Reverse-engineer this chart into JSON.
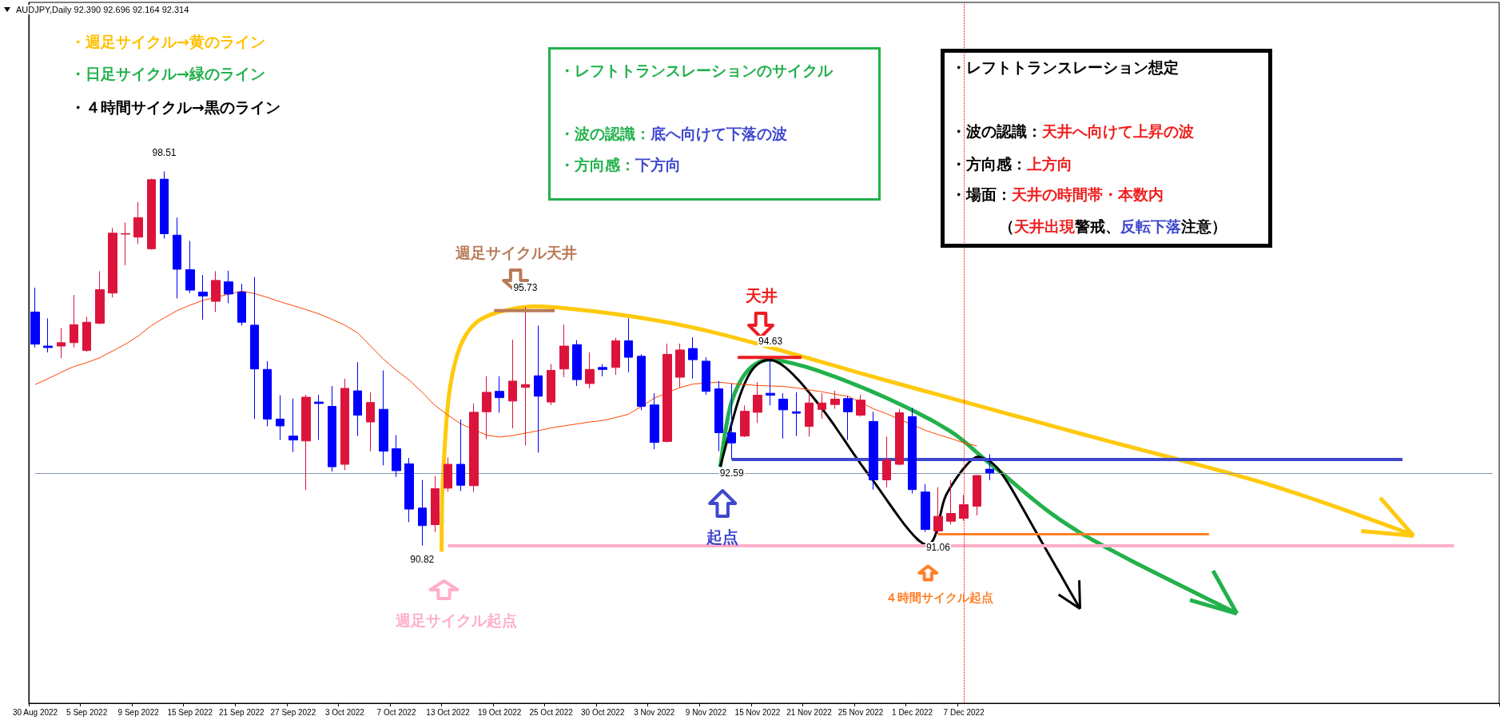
{
  "chart_data": {
    "type": "candlestick",
    "categories": [
      "30 Aug 2022",
      null,
      null,
      null,
      "5 Sep 2022",
      null,
      null,
      null,
      "9 Sep 2022",
      null,
      null,
      null,
      "15 Sep 2022",
      null,
      null,
      null,
      "21 Sep 2022",
      null,
      null,
      null,
      "27 Sep 2022",
      null,
      null,
      null,
      "3 Oct 2022",
      null,
      null,
      null,
      "7 Oct 2022",
      null,
      null,
      null,
      "13 Oct 2022",
      null,
      null,
      null,
      "19 Oct 2022",
      null,
      null,
      null,
      "25 Oct 2022",
      null,
      null,
      null,
      "30 Oct 2022",
      null,
      null,
      null,
      "3 Nov 2022",
      null,
      null,
      null,
      "9 Nov 2022",
      null,
      null,
      null,
      "15 Nov 2022",
      null,
      null,
      null,
      "21 Nov 2022",
      null,
      null,
      null,
      "25 Nov 2022",
      null,
      null,
      null,
      "1 Dec 2022",
      null,
      null,
      null,
      "7 Dec 2022",
      null,
      null,
      null,
      null,
      null,
      null,
      null,
      null,
      null,
      null,
      null,
      null,
      null,
      null,
      null,
      null,
      null,
      null,
      null,
      null,
      null,
      null,
      null,
      null,
      null,
      null,
      null,
      null,
      null,
      null,
      null,
      null,
      null,
      null,
      null,
      null,
      null,
      null,
      null,
      null,
      null
    ],
    "ohlc": [
      [
        95.62,
        96.12,
        94.89,
        94.96
      ],
      [
        94.92,
        95.49,
        94.79,
        94.89
      ],
      [
        94.92,
        95.29,
        94.67,
        94.99
      ],
      [
        94.99,
        95.97,
        94.89,
        95.36
      ],
      [
        94.83,
        95.52,
        94.8,
        95.41
      ],
      [
        95.39,
        96.46,
        95.37,
        96.08
      ],
      [
        96.01,
        97.35,
        95.92,
        97.24
      ],
      [
        97.22,
        97.46,
        96.58,
        97.23
      ],
      [
        97.16,
        97.88,
        97.02,
        97.56
      ],
      [
        96.92,
        98.36,
        96.9,
        98.34
      ],
      [
        98.35,
        98.51,
        97.13,
        97.23
      ],
      [
        97.2,
        97.56,
        95.9,
        96.5
      ],
      [
        96.49,
        97.08,
        96.01,
        96.07
      ],
      [
        96.03,
        96.38,
        95.46,
        95.95
      ],
      [
        95.84,
        96.46,
        95.62,
        96.27
      ],
      [
        96.24,
        96.47,
        95.8,
        95.99
      ],
      [
        96.03,
        96.2,
        95.34,
        95.41
      ],
      [
        95.35,
        96.34,
        93.42,
        94.45
      ],
      [
        94.44,
        94.61,
        93.27,
        93.42
      ],
      [
        93.42,
        93.91,
        92.99,
        93.28
      ],
      [
        93.07,
        93.84,
        92.74,
        92.99
      ],
      [
        92.97,
        93.92,
        91.96,
        93.87
      ],
      [
        93.77,
        93.92,
        92.99,
        93.74
      ],
      [
        93.68,
        94.1,
        92.34,
        92.44
      ],
      [
        92.49,
        94.25,
        92.37,
        94.05
      ],
      [
        94.0,
        94.59,
        93.07,
        93.5
      ],
      [
        93.36,
        93.97,
        92.76,
        93.76
      ],
      [
        93.62,
        94.42,
        92.47,
        92.76
      ],
      [
        92.81,
        93.09,
        92.23,
        92.36
      ],
      [
        92.5,
        92.62,
        91.3,
        91.57
      ],
      [
        91.59,
        92.17,
        90.82,
        91.23
      ],
      [
        91.25,
        92.25,
        91.1,
        91.99
      ],
      [
        92.0,
        92.63,
        91.93,
        92.49
      ],
      [
        92.49,
        93.41,
        91.94,
        92.06
      ],
      [
        92.05,
        93.74,
        91.92,
        93.56
      ],
      [
        93.57,
        94.3,
        93.01,
        93.97
      ],
      [
        93.99,
        94.3,
        93.55,
        93.86
      ],
      [
        93.79,
        95.05,
        93.23,
        94.2
      ],
      [
        94.07,
        95.73,
        92.88,
        94.13
      ],
      [
        94.31,
        95.34,
        92.73,
        93.89
      ],
      [
        93.77,
        94.55,
        93.71,
        94.42
      ],
      [
        94.45,
        95.36,
        94.28,
        94.92
      ],
      [
        94.95,
        95.04,
        94.1,
        94.23
      ],
      [
        94.15,
        94.79,
        94.05,
        94.44
      ],
      [
        94.48,
        94.55,
        94.3,
        94.44
      ],
      [
        94.48,
        95.09,
        94.33,
        95.03
      ],
      [
        95.03,
        95.49,
        94.38,
        94.69
      ],
      [
        94.71,
        94.75,
        93.6,
        93.68
      ],
      [
        93.71,
        93.95,
        92.8,
        92.94
      ],
      [
        92.96,
        94.97,
        92.94,
        94.75
      ],
      [
        94.28,
        94.97,
        94.07,
        94.84
      ],
      [
        94.87,
        95.1,
        94.25,
        94.64
      ],
      [
        94.61,
        94.69,
        93.92,
        93.99
      ],
      [
        94.04,
        94.2,
        92.76,
        93.14
      ],
      [
        93.14,
        94.15,
        92.59,
        92.93
      ],
      [
        93.07,
        93.7,
        93.05,
        93.58
      ],
      [
        93.56,
        94.18,
        93.34,
        93.91
      ],
      [
        93.95,
        94.63,
        93.7,
        93.91
      ],
      [
        93.83,
        93.95,
        93.02,
        93.61
      ],
      [
        93.57,
        93.97,
        93.07,
        93.54
      ],
      [
        93.27,
        93.95,
        93.06,
        93.75
      ],
      [
        93.62,
        93.95,
        93.43,
        93.75
      ],
      [
        93.72,
        94.0,
        93.63,
        93.83
      ],
      [
        93.84,
        93.89,
        92.99,
        93.57
      ],
      [
        93.5,
        93.92,
        93.47,
        93.81
      ],
      [
        93.37,
        93.57,
        91.97,
        92.17
      ],
      [
        92.17,
        93.06,
        92.02,
        92.58
      ],
      [
        92.49,
        93.63,
        92.47,
        93.55
      ],
      [
        93.47,
        93.65,
        91.89,
        91.97
      ],
      [
        91.92,
        92.08,
        91.1,
        91.15
      ],
      [
        91.12,
        92.02,
        91.06,
        91.42
      ],
      [
        91.32,
        92.16,
        91.25,
        91.48
      ],
      [
        91.38,
        91.86,
        91.33,
        91.66
      ],
      [
        91.63,
        92.27,
        91.44,
        92.26
      ],
      [
        92.39,
        92.696,
        92.164,
        92.314
      ],
      null,
      null,
      null,
      null,
      null,
      null,
      null,
      null,
      null,
      null,
      null,
      null,
      null,
      null,
      null,
      null,
      null,
      null,
      null,
      null,
      null,
      null,
      null,
      null,
      null,
      null,
      null,
      null,
      null,
      null,
      null,
      null,
      null,
      null,
      null,
      null,
      null,
      null,
      null
    ],
    "colors": [
      "#0000ff",
      "#0000ff",
      "#dc143c",
      "#dc143c",
      "#dc143c",
      "#dc143c",
      "#dc143c",
      "#dc143c",
      "#dc143c",
      "#dc143c",
      "#0000ff",
      "#0000ff",
      "#0000ff",
      "#0000ff",
      "#dc143c",
      "#0000ff",
      "#0000ff",
      "#0000ff",
      "#0000ff",
      "#0000ff",
      "#0000ff",
      "#dc143c",
      "#0000ff",
      "#0000ff",
      "#dc143c",
      "#0000ff",
      "#dc143c",
      "#0000ff",
      "#0000ff",
      "#0000ff",
      "#0000ff",
      "#dc143c",
      "#dc143c",
      "#0000ff",
      "#dc143c",
      "#dc143c",
      "#0000ff",
      "#dc143c",
      "#dc143c",
      "#0000ff",
      "#dc143c",
      "#dc143c",
      "#0000ff",
      "#dc143c",
      "#0000ff",
      "#dc143c",
      "#0000ff",
      "#0000ff",
      "#0000ff",
      "#dc143c",
      "#dc143c",
      "#0000ff",
      "#0000ff",
      "#0000ff",
      "#0000ff",
      "#dc143c",
      "#dc143c",
      "#0000ff",
      "#0000ff",
      "#0000ff",
      "#dc143c",
      "#dc143c",
      "#dc143c",
      "#0000ff",
      "#dc143c",
      "#0000ff",
      "#dc143c",
      "#dc143c",
      "#0000ff",
      "#0000ff",
      "#dc143c",
      "#dc143c",
      "#dc143c",
      "#dc143c",
      "#0000ff",
      null,
      null,
      null,
      null,
      null,
      null,
      null,
      null,
      null,
      null,
      null,
      null,
      null,
      null,
      null,
      null,
      null,
      null,
      null,
      null,
      null,
      null,
      null,
      null,
      null,
      null,
      null,
      null,
      null,
      null,
      null,
      null,
      null,
      null,
      null,
      null,
      null,
      null,
      null
    ],
    "series": [
      {
        "type": "line",
        "color": "#ff4500",
        "values": [
          94.13,
          94.25,
          94.38,
          94.5,
          94.58,
          94.68,
          94.82,
          94.96,
          95.13,
          95.34,
          95.5,
          95.65,
          95.76,
          95.86,
          null,
          null,
          96.05,
          96.0,
          95.92,
          95.83,
          95.75,
          95.67,
          95.58,
          95.47,
          95.35,
          95.19,
          94.92,
          94.65,
          94.42,
          94.22,
          93.97,
          93.7,
          93.5,
          93.32,
          null,
          93.09,
          93.05,
          93.08,
          93.13,
          93.18,
          93.24,
          93.28,
          93.32,
          93.36,
          93.39,
          93.45,
          93.52,
          93.68,
          93.85,
          null,
          94.07,
          94.14,
          null,
          94.18,
          94.15,
          94.13,
          94.11,
          94.1,
          94.09,
          94.06,
          94.02,
          93.98,
          93.93,
          93.89,
          null,
          93.63,
          93.53,
          null,
          null,
          93.19,
          93.1,
          93.02,
          92.93,
          92.87,
          null,
          null,
          null,
          null,
          null,
          null,
          null,
          null,
          null,
          null,
          null,
          null,
          null,
          null,
          null,
          null,
          null,
          null,
          null,
          null,
          null,
          null,
          null,
          null,
          null,
          null,
          null,
          null,
          null,
          null,
          null,
          null,
          null,
          null,
          null,
          null,
          null,
          null,
          null,
          null
        ]
      }
    ],
    "marker": "none",
    "ref_lines": [
      {
        "axis": "y",
        "value": 92.59,
        "color": "#3f48cc"
      },
      {
        "axis": "y",
        "value": 91.06,
        "color": "#ff7f27"
      },
      {
        "axis": "y",
        "value": 90.82,
        "color": "#ffaec9"
      },
      {
        "axis": "y",
        "value": 92.31,
        "color": "#8497b0"
      },
      {
        "axis": "x",
        "value": "7 Dec 2022",
        "color": "#ff0000",
        "line_style": "dotted"
      }
    ],
    "annotations": [
      "AUDJPY,Daily  92.390 92.696 92.164 92.314",
      "・週足サイクル→黄のライン",
      "・日足サイクル→緑のライン",
      "・４時間サイクル→黒のライン",
      "・レフトトランスレーションのサイクル",
      "・波の認識：",
      "底へ向けて下落の波",
      "・方向感：",
      "下方向",
      "・レフトトランスレーション想定",
      "・波の認識：",
      "天井へ向けて上昇の波",
      "・方向感：",
      "上方向",
      "・場面：",
      "天井の時間帯・本数内",
      "（",
      "天井出現",
      "警戒、",
      "反転下落",
      "注意）",
      "週足サイクル天井",
      "天井",
      "起点",
      "週足サイクル起点",
      "４時間サイクル起点",
      {
        "text": "98.51",
        "y": 98.51
      },
      {
        "text": "95.73",
        "y": 95.73
      },
      {
        "text": "94.63",
        "y": 94.63
      },
      {
        "text": "92.59",
        "y": 92.59
      },
      {
        "text": "91.06",
        "y": 91.06
      },
      {
        "text": "90.82",
        "y": 90.82
      }
    ]
  }
}
